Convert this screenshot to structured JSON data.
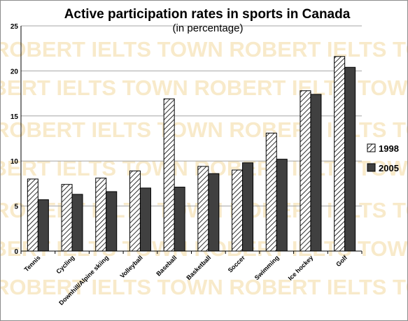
{
  "chart_data": {
    "type": "bar",
    "title": "Active participation rates in sports in Canada",
    "subtitle": "(in percentage)",
    "xlabel": "",
    "ylabel": "",
    "ylim": [
      0,
      25
    ],
    "yticks": [
      0,
      5,
      10,
      15,
      20,
      25
    ],
    "grid": true,
    "legend": "right",
    "categories": [
      "Tennis",
      "Cycling",
      "Downhill/Alpine skiing",
      "Volleyball",
      "Baseball",
      "Basketball",
      "Soccer",
      "Swimming",
      "Ice hockey",
      "Golf"
    ],
    "series": [
      {
        "name": "1998",
        "pattern": "hatched",
        "color": "#ffffff",
        "values": [
          8.0,
          7.4,
          8.1,
          8.9,
          16.9,
          9.4,
          9.0,
          13.1,
          17.8,
          21.6
        ]
      },
      {
        "name": "2005",
        "pattern": "solid",
        "color": "#404040",
        "values": [
          5.7,
          6.3,
          6.6,
          7.0,
          7.1,
          8.6,
          9.8,
          10.2,
          17.4,
          20.4
        ]
      }
    ]
  },
  "watermark": {
    "text": "ROBERT IELTS TOWN",
    "color": "#f3d9a0"
  }
}
